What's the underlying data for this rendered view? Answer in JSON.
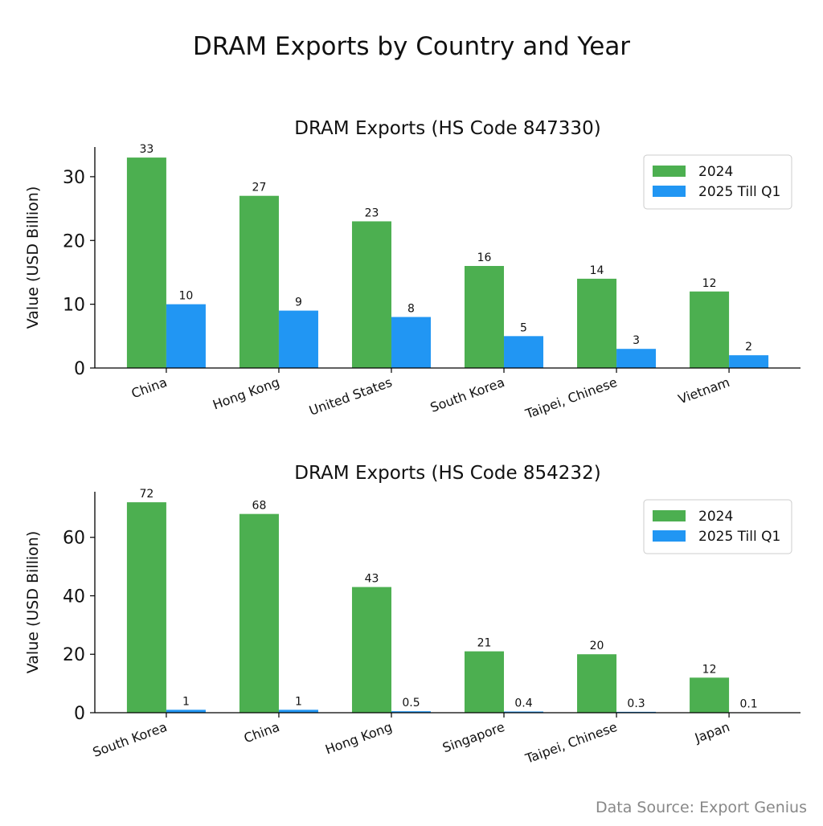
{
  "title": "DRAM Exports by Country and Year",
  "source": "Data Source: Export Genius",
  "colors": {
    "2024": "#4CAF50",
    "2025 Till Q1": "#2196F3"
  },
  "chart_data": [
    {
      "type": "bar",
      "title": "DRAM Exports (HS Code 847330)",
      "ylabel": "Value (USD Billion)",
      "xlabel": "",
      "categories": [
        "China",
        "Hong Kong",
        "United States",
        "South Korea",
        "Taipei, Chinese",
        "Vietnam"
      ],
      "series": [
        {
          "name": "2024",
          "values": [
            33,
            27,
            23,
            16,
            14,
            12
          ],
          "labels": [
            "33",
            "27",
            "23",
            "16",
            "14",
            "12"
          ]
        },
        {
          "name": "2025 Till Q1",
          "values": [
            10,
            9,
            8,
            5,
            3,
            2
          ],
          "labels": [
            "10",
            "9",
            "8",
            "5",
            "3",
            "2"
          ]
        }
      ],
      "ylim": [
        0,
        34.65
      ],
      "yticks": [
        0,
        10,
        20,
        30
      ],
      "grid": false,
      "legend": "top-right"
    },
    {
      "type": "bar",
      "title": "DRAM Exports (HS Code 854232)",
      "ylabel": "Value (USD Billion)",
      "xlabel": "",
      "categories": [
        "South Korea",
        "China",
        "Hong Kong",
        "Singapore",
        "Taipei, Chinese",
        "Japan"
      ],
      "series": [
        {
          "name": "2024",
          "values": [
            72,
            68,
            43,
            21,
            20,
            12
          ],
          "labels": [
            "72",
            "68",
            "43",
            "21",
            "20",
            "12"
          ]
        },
        {
          "name": "2025 Till Q1",
          "values": [
            1,
            1,
            0.5,
            0.4,
            0.3,
            0.1
          ],
          "labels": [
            "1",
            "1",
            "0.5",
            "0.4",
            "0.3",
            "0.1"
          ]
        }
      ],
      "ylim": [
        0,
        75.6
      ],
      "yticks": [
        0,
        20,
        40,
        60
      ],
      "grid": false,
      "legend": "top-right"
    }
  ]
}
